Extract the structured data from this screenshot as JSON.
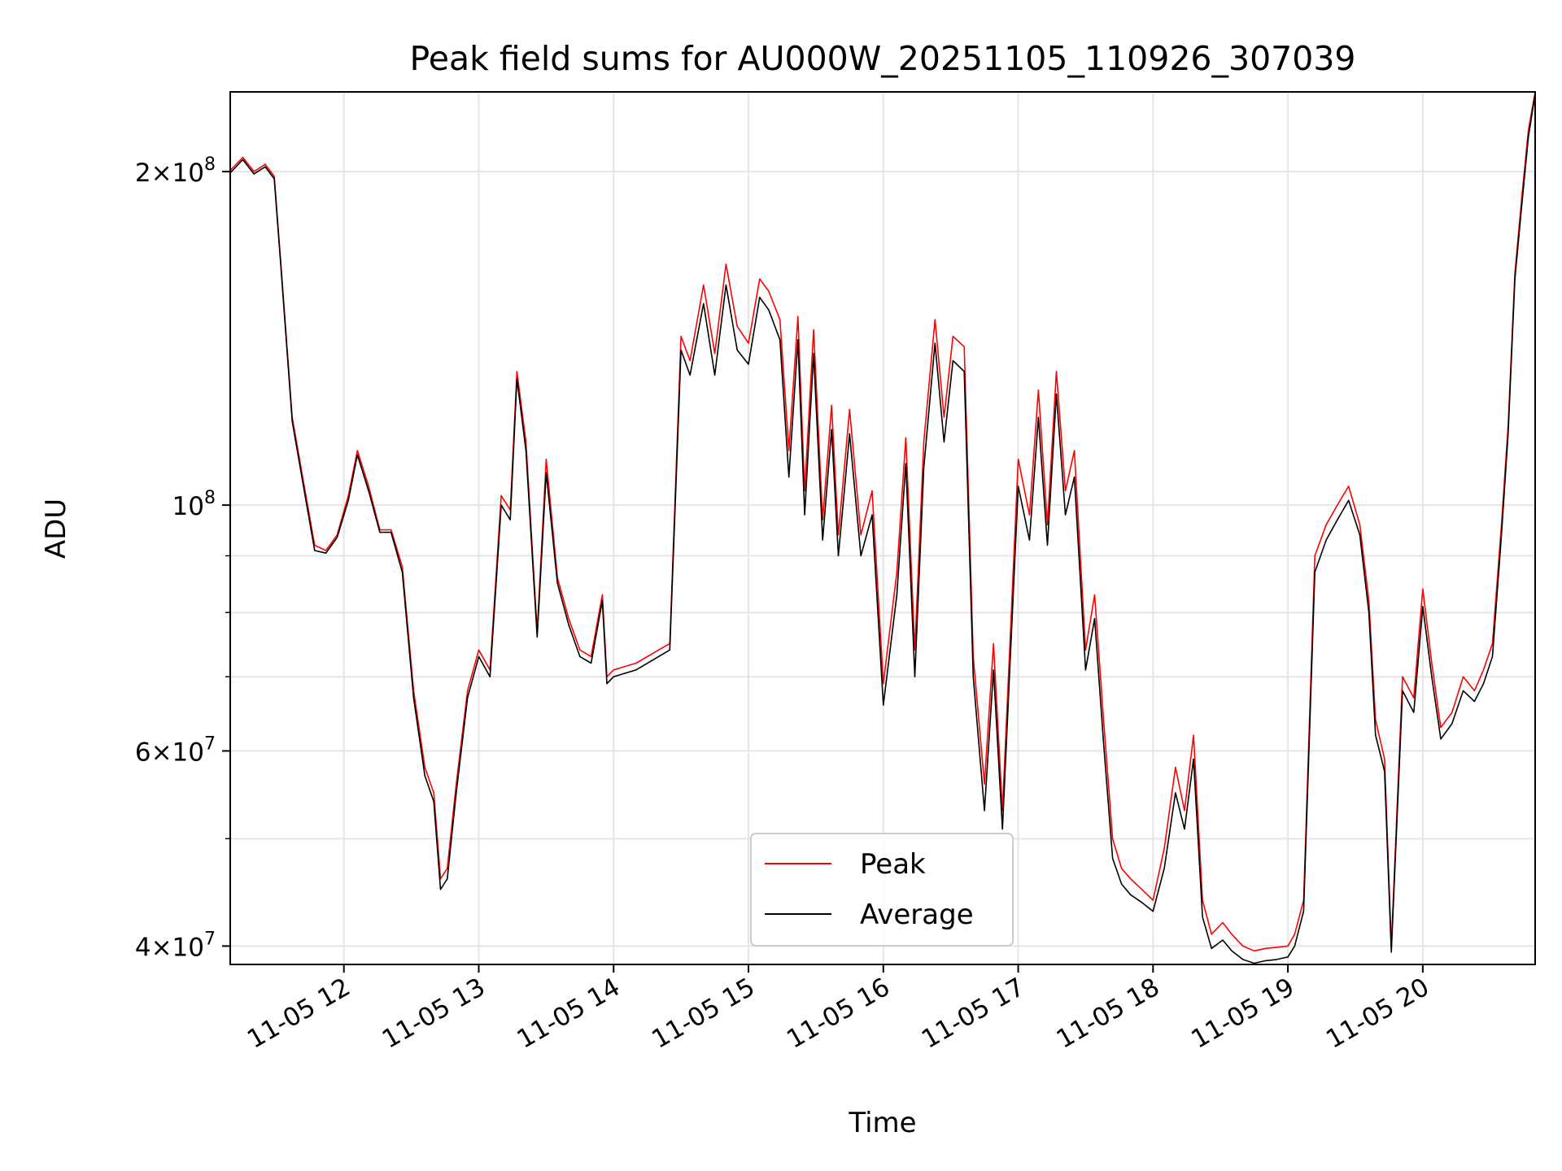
{
  "chart_data": {
    "type": "line",
    "title": "Peak field sums for AU000W_20251105_110926_307039",
    "xlabel": "Time",
    "ylabel": "ADU",
    "x_axis": {
      "type": "time",
      "range": [
        "11-05 11:09:26",
        "11-05 20:50"
      ],
      "tick_labels": [
        "11-05 12",
        "11-05 13",
        "11-05 14",
        "11-05 15",
        "11-05 16",
        "11-05 17",
        "11-05 18",
        "11-05 19",
        "11-05 20"
      ]
    },
    "y_axis": {
      "scale": "log",
      "range": [
        38500000,
        236000000
      ],
      "major_ticks": [
        {
          "value": 40000000,
          "label_base": "4",
          "label_exp": "7"
        },
        {
          "value": 60000000,
          "label_base": "6",
          "label_exp": "7"
        },
        {
          "value": 100000000,
          "label_base": "",
          "label_exp": "8"
        },
        {
          "value": 200000000,
          "label_base": "2",
          "label_exp": "8"
        }
      ],
      "minor_ticks": [
        50000000,
        70000000,
        80000000,
        90000000
      ]
    },
    "grid": true,
    "legend": {
      "placement": "lower-center"
    },
    "series": [
      {
        "name": "Peak",
        "color": "#ff0000",
        "x": [
          "11:09",
          "11:15",
          "11:20",
          "11:25",
          "11:29",
          "11:32",
          "11:37",
          "11:42",
          "11:47",
          "11:52",
          "11:57",
          "12:02",
          "12:06",
          "12:11",
          "12:16",
          "12:21",
          "12:26",
          "12:31",
          "12:36",
          "12:40",
          "12:43",
          "12:46",
          "12:50",
          "12:55",
          "13:00",
          "13:05",
          "13:10",
          "13:14",
          "13:17",
          "13:21",
          "13:26",
          "13:30",
          "13:35",
          "13:40",
          "13:45",
          "13:50",
          "13:55",
          "13:57",
          "14:00",
          "14:10",
          "14:20",
          "14:25",
          "14:30",
          "14:34",
          "14:40",
          "14:45",
          "14:50",
          "14:55",
          "15:00",
          "15:05",
          "15:09",
          "15:14",
          "15:18",
          "15:22",
          "15:25",
          "15:29",
          "15:33",
          "15:37",
          "15:40",
          "15:45",
          "15:50",
          "15:55",
          "16:00",
          "16:06",
          "16:10",
          "16:14",
          "16:18",
          "16:23",
          "16:27",
          "16:31",
          "16:36",
          "16:40",
          "16:45",
          "16:49",
          "16:53",
          "17:00",
          "17:05",
          "17:09",
          "17:13",
          "17:17",
          "17:21",
          "17:25",
          "17:30",
          "17:34",
          "17:38",
          "17:42",
          "17:46",
          "17:50",
          "17:55",
          "18:00",
          "18:05",
          "18:10",
          "18:14",
          "18:18",
          "18:22",
          "18:26",
          "18:31",
          "18:35",
          "18:40",
          "18:45",
          "18:50",
          "18:55",
          "19:00",
          "19:03",
          "19:07",
          "19:12",
          "19:17",
          "19:22",
          "19:27",
          "19:32",
          "19:36",
          "19:39",
          "19:43",
          "19:46",
          "19:51",
          "19:56",
          "20:00",
          "20:04",
          "20:08",
          "20:13",
          "20:18",
          "20:23",
          "20:27",
          "20:31",
          "20:35",
          "20:38",
          "20:41",
          "20:44",
          "20:47",
          "20:50"
        ],
        "values": [
          200000000,
          206000000,
          200000000,
          203000000,
          198000000,
          165000000,
          120000000,
          105000000,
          92000000,
          91000000,
          94000000,
          102000000,
          112000000,
          104000000,
          95000000,
          95000000,
          88000000,
          68000000,
          58000000,
          55000000,
          46000000,
          47000000,
          56000000,
          68000000,
          74000000,
          71000000,
          102000000,
          99000000,
          132000000,
          114000000,
          77000000,
          110000000,
          86000000,
          79000000,
          74000000,
          73000000,
          83000000,
          70000000,
          71000000,
          72000000,
          74000000,
          75000000,
          142000000,
          135000000,
          158000000,
          137000000,
          165000000,
          145000000,
          140000000,
          160000000,
          156000000,
          147000000,
          112000000,
          148000000,
          103000000,
          144000000,
          97000000,
          123000000,
          94000000,
          122000000,
          94000000,
          103000000,
          69000000,
          87000000,
          115000000,
          74000000,
          114000000,
          147000000,
          120000000,
          142000000,
          139000000,
          73000000,
          56000000,
          75000000,
          53000000,
          110000000,
          98000000,
          127000000,
          96000000,
          132000000,
          103000000,
          112000000,
          74000000,
          83000000,
          64000000,
          50000000,
          47000000,
          46000000,
          45000000,
          44000000,
          49000000,
          58000000,
          53000000,
          62000000,
          44000000,
          41000000,
          42000000,
          41000000,
          40000000,
          39600000,
          39800000,
          39900000,
          40000000,
          41000000,
          44000000,
          90000000,
          96000000,
          100000000,
          104000000,
          96000000,
          82000000,
          64000000,
          59000000,
          40000000,
          70000000,
          67000000,
          84000000,
          72000000,
          63000000,
          65000000,
          70000000,
          68000000,
          71000000,
          75000000,
          96000000,
          118000000,
          162000000,
          189000000,
          218000000,
          236000000
        ]
      },
      {
        "name": "Average",
        "color": "#000000",
        "x": [
          "11:09",
          "11:15",
          "11:20",
          "11:25",
          "11:29",
          "11:32",
          "11:37",
          "11:42",
          "11:47",
          "11:52",
          "11:57",
          "12:02",
          "12:06",
          "12:11",
          "12:16",
          "12:21",
          "12:26",
          "12:31",
          "12:36",
          "12:40",
          "12:43",
          "12:46",
          "12:50",
          "12:55",
          "13:00",
          "13:05",
          "13:10",
          "13:14",
          "13:17",
          "13:21",
          "13:26",
          "13:30",
          "13:35",
          "13:40",
          "13:45",
          "13:50",
          "13:55",
          "13:57",
          "14:00",
          "14:10",
          "14:20",
          "14:25",
          "14:30",
          "14:34",
          "14:40",
          "14:45",
          "14:50",
          "14:55",
          "15:00",
          "15:05",
          "15:09",
          "15:14",
          "15:18",
          "15:22",
          "15:25",
          "15:29",
          "15:33",
          "15:37",
          "15:40",
          "15:45",
          "15:50",
          "15:55",
          "16:00",
          "16:06",
          "16:10",
          "16:14",
          "16:18",
          "16:23",
          "16:27",
          "16:31",
          "16:36",
          "16:40",
          "16:45",
          "16:49",
          "16:53",
          "17:00",
          "17:05",
          "17:09",
          "17:13",
          "17:17",
          "17:21",
          "17:25",
          "17:30",
          "17:34",
          "17:38",
          "17:42",
          "17:46",
          "17:50",
          "17:55",
          "18:00",
          "18:05",
          "18:10",
          "18:14",
          "18:18",
          "18:22",
          "18:26",
          "18:31",
          "18:35",
          "18:40",
          "18:45",
          "18:50",
          "18:55",
          "19:00",
          "19:03",
          "19:07",
          "19:12",
          "19:17",
          "19:22",
          "19:27",
          "19:32",
          "19:36",
          "19:39",
          "19:43",
          "19:46",
          "19:51",
          "19:56",
          "20:00",
          "20:04",
          "20:08",
          "20:13",
          "20:18",
          "20:23",
          "20:27",
          "20:31",
          "20:35",
          "20:38",
          "20:41",
          "20:44",
          "20:47",
          "20:50"
        ],
        "values": [
          199000000,
          205000000,
          199000000,
          202000000,
          197000000,
          164000000,
          119000000,
          104000000,
          91000000,
          90500000,
          93500000,
          101000000,
          111000000,
          103000000,
          94500000,
          94500000,
          87000000,
          67000000,
          57000000,
          54000000,
          45000000,
          46000000,
          55000000,
          67000000,
          73000000,
          70000000,
          100000000,
          97000000,
          130000000,
          112000000,
          76000000,
          107000000,
          85000000,
          78000000,
          73000000,
          72000000,
          82000000,
          69000000,
          70000000,
          71000000,
          73000000,
          74000000,
          138000000,
          131000000,
          152000000,
          131000000,
          158000000,
          138000000,
          134000000,
          154000000,
          150000000,
          141000000,
          106000000,
          141000000,
          98000000,
          137000000,
          93000000,
          117000000,
          90000000,
          116000000,
          90000000,
          98000000,
          66000000,
          83000000,
          109000000,
          70000000,
          108000000,
          140000000,
          114000000,
          135000000,
          132000000,
          70000000,
          53000000,
          71000000,
          51000000,
          104000000,
          93000000,
          120000000,
          92000000,
          126000000,
          98000000,
          106000000,
          71000000,
          79000000,
          61000000,
          48000000,
          45500000,
          44500000,
          43800000,
          43000000,
          47000000,
          55000000,
          51000000,
          59000000,
          42500000,
          39800000,
          40500000,
          39600000,
          38900000,
          38600000,
          38800000,
          38900000,
          39100000,
          40000000,
          43000000,
          87000000,
          93000000,
          97000000,
          101000000,
          94000000,
          80000000,
          62000000,
          57500000,
          39500000,
          68000000,
          65000000,
          81000000,
          70000000,
          61500000,
          63500000,
          68000000,
          66500000,
          69000000,
          73000000,
          94000000,
          116000000,
          160000000,
          186000000,
          215000000,
          235000000
        ]
      }
    ]
  }
}
